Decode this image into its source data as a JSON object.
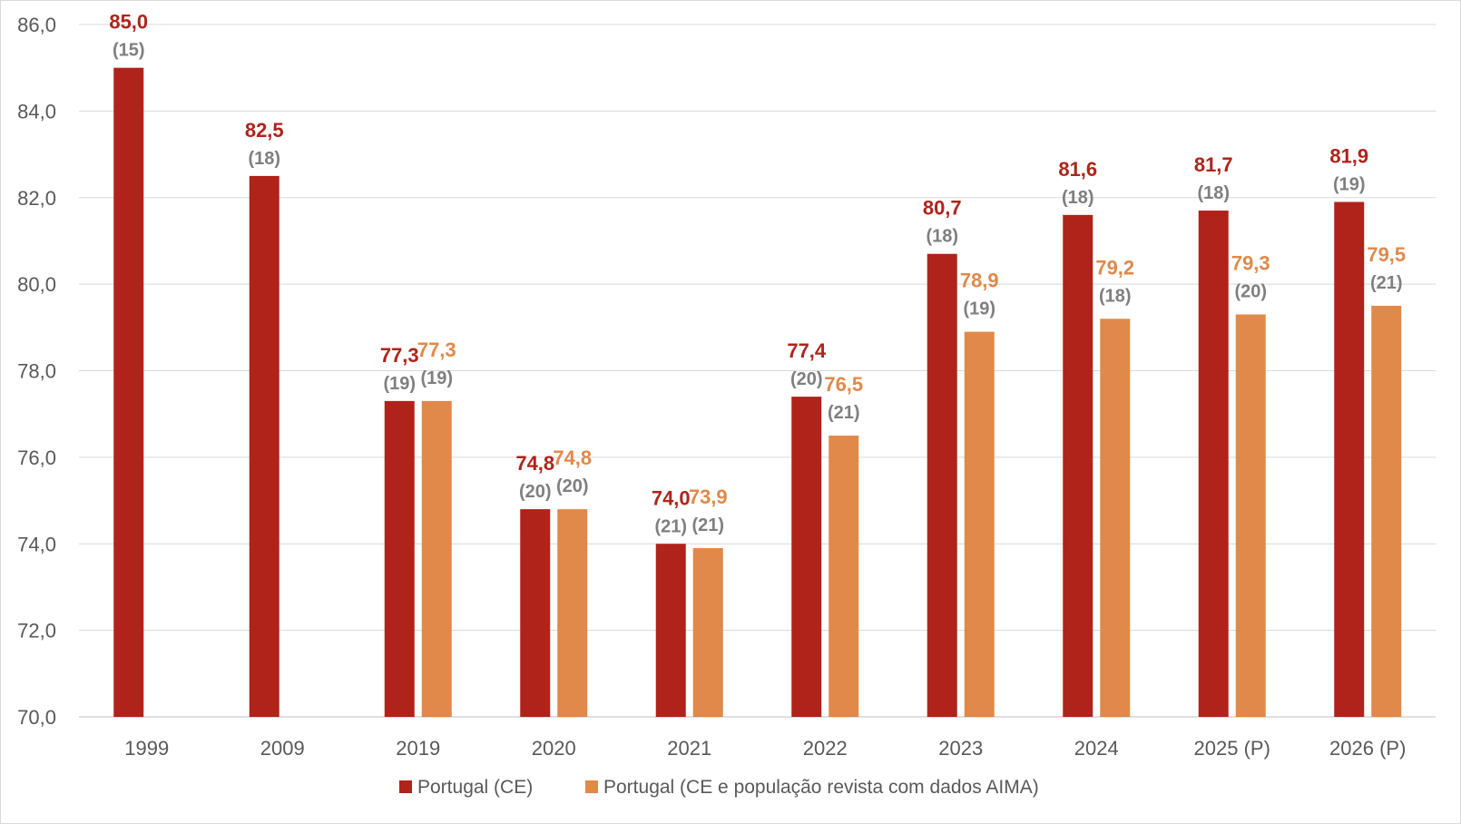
{
  "chart_data": {
    "type": "bar",
    "categories": [
      "1999",
      "2009",
      "2019",
      "2020",
      "2021",
      "2022",
      "2023",
      "2024",
      "2025 (P)",
      "2026 (P)"
    ],
    "series": [
      {
        "name": "Portugal (CE)",
        "color": "#b0231a",
        "values": [
          85.0,
          82.5,
          77.3,
          74.8,
          74.0,
          77.4,
          80.7,
          81.6,
          81.7,
          81.9
        ],
        "value_labels": [
          "85,0",
          "82,5",
          "77,3",
          "74,8",
          "74,0",
          "77,4",
          "80,7",
          "81,6",
          "81,7",
          "81,9"
        ],
        "rank_labels": [
          "(15)",
          "(18)",
          "(19)",
          "(20)",
          "(21)",
          "(20)",
          "(18)",
          "(18)",
          "(18)",
          "(19)"
        ]
      },
      {
        "name": "Portugal (CE e população revista com dados AIMA)",
        "color": "#e0894a",
        "values": [
          null,
          null,
          77.3,
          74.8,
          73.9,
          76.5,
          78.9,
          79.2,
          79.3,
          79.5
        ],
        "value_labels": [
          null,
          null,
          "77,3",
          "74,8",
          "73,9",
          "76,5",
          "78,9",
          "79,2",
          "79,3",
          "79,5"
        ],
        "rank_labels": [
          null,
          null,
          "(19)",
          "(20)",
          "(21)",
          "(21)",
          "(19)",
          "(18)",
          "(20)",
          "(21)"
        ]
      }
    ],
    "ylim": [
      70,
      86
    ],
    "yticks": [
      70,
      72,
      74,
      76,
      78,
      80,
      82,
      84,
      86
    ],
    "ytick_labels": [
      "70,0",
      "72,0",
      "74,0",
      "76,0",
      "78,0",
      "80,0",
      "82,0",
      "84,0",
      "86,0"
    ],
    "grid": true,
    "legend_position": "bottom"
  }
}
